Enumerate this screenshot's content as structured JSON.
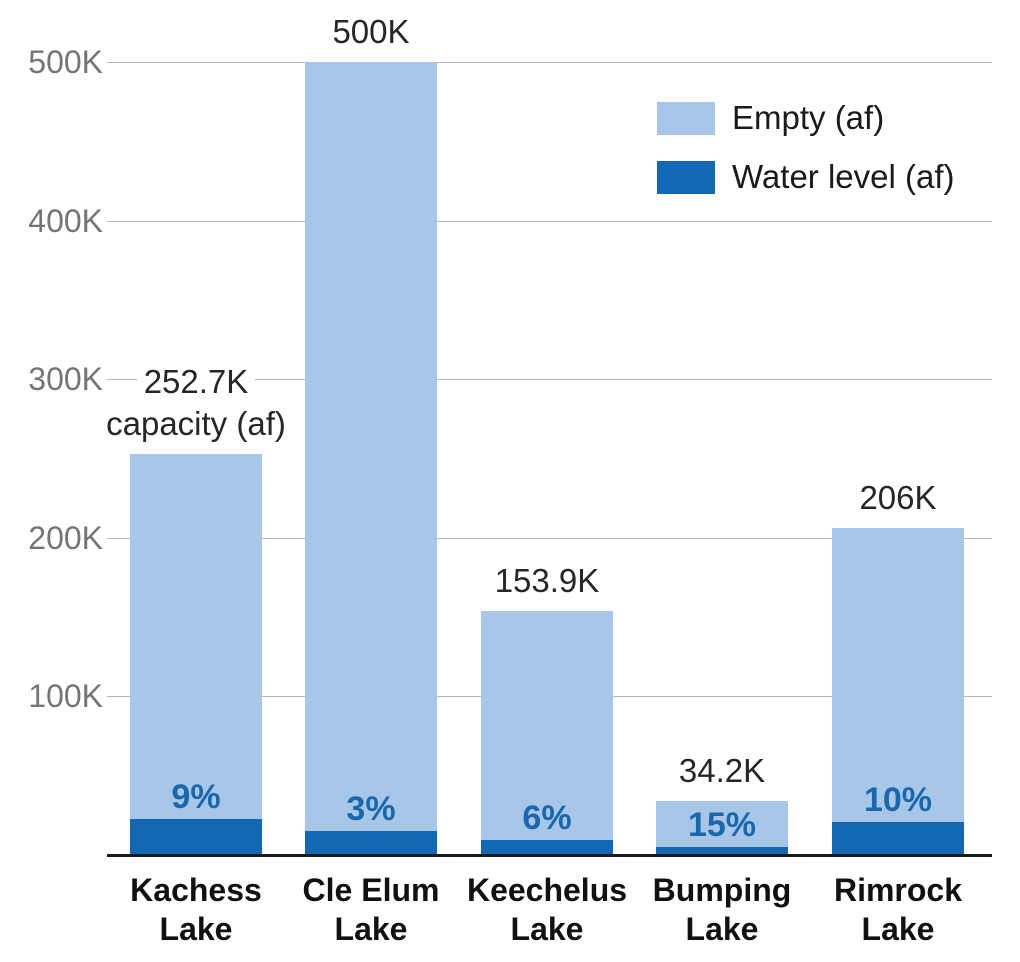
{
  "chart_data": {
    "type": "bar",
    "stacked": true,
    "title": "",
    "xlabel": "",
    "ylabel": "",
    "units": "acre-feet (af)",
    "grid": true,
    "legend_position": "top-right",
    "legend": [
      {
        "label": "Empty (af)",
        "color": "#a7c6e8"
      },
      {
        "label": "Water level (af)",
        "color": "#1268b2"
      }
    ],
    "y_axis": {
      "range_af": [
        0,
        530000
      ],
      "ticks": [
        {
          "value": 100000,
          "label": "100K"
        },
        {
          "value": 200000,
          "label": "200K"
        },
        {
          "value": 300000,
          "label": "300K"
        },
        {
          "value": 400000,
          "label": "400K"
        },
        {
          "value": 500000,
          "label": "500K"
        }
      ]
    },
    "categories": [
      "Kachess Lake",
      "Cle Elum Lake",
      "Keechelus Lake",
      "Bumping Lake",
      "Rimrock Lake"
    ],
    "bars": [
      {
        "category": "Kachess Lake",
        "label_lines": [
          "Kachess",
          "Lake"
        ],
        "capacity_af": 252700,
        "capacity_label_lines": [
          "252.7K",
          "capacity (af)"
        ],
        "percent_full": 9,
        "percent_label": "9%"
      },
      {
        "category": "Cle Elum Lake",
        "label_lines": [
          "Cle Elum",
          "Lake"
        ],
        "capacity_af": 500000,
        "capacity_label_lines": [
          "500K"
        ],
        "percent_full": 3,
        "percent_label": "3%"
      },
      {
        "category": "Keechelus Lake",
        "label_lines": [
          "Keechelus",
          "Lake"
        ],
        "capacity_af": 153900,
        "capacity_label_lines": [
          "153.9K"
        ],
        "percent_full": 6,
        "percent_label": "6%"
      },
      {
        "category": "Bumping Lake",
        "label_lines": [
          "Bumping",
          "Lake"
        ],
        "capacity_af": 34200,
        "capacity_label_lines": [
          "34.2K"
        ],
        "percent_full": 15,
        "percent_label": "15%"
      },
      {
        "category": "Rimrock Lake",
        "label_lines": [
          "Rimrock",
          "Lake"
        ],
        "capacity_af": 206000,
        "capacity_label_lines": [
          "206K"
        ],
        "percent_full": 10,
        "percent_label": "10%"
      }
    ],
    "colors": {
      "empty_bar": "#a7c6e8",
      "water_bar": "#1268b2",
      "percent_text": "#1a67ac",
      "gridline": "#b4b4b4",
      "tick_text": "#757575",
      "axis_line": "#1a1a1a",
      "capacity_text": "#262626",
      "category_text": "#111111"
    }
  }
}
